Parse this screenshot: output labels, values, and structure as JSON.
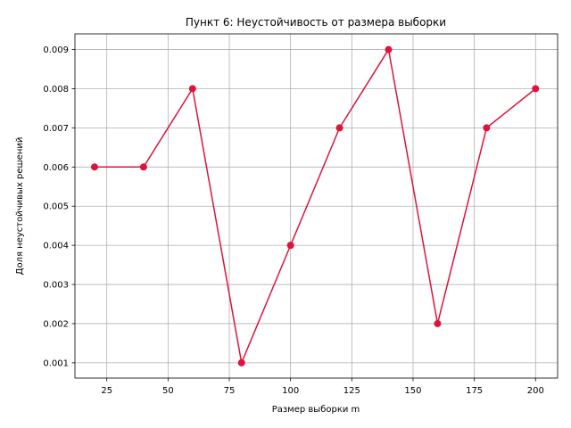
{
  "chart_data": {
    "type": "line",
    "title": "Пункт 6: Неустойчивость от размера выборки",
    "xlabel": "Размер выборки m",
    "ylabel": "Доля неустойчивых решений",
    "x": [
      20,
      40,
      60,
      80,
      100,
      120,
      140,
      160,
      180,
      200
    ],
    "series": [
      {
        "values": [
          0.006,
          0.006,
          0.008,
          0.001,
          0.004,
          0.007,
          0.009,
          0.002,
          0.007,
          0.008
        ]
      }
    ],
    "xlim": [
      12,
      209
    ],
    "ylim": [
      0.00061,
      0.0094
    ],
    "xticks": [
      25,
      50,
      75,
      100,
      125,
      150,
      175,
      200
    ],
    "xtick_labels": [
      "25",
      "50",
      "75",
      "100",
      "125",
      "150",
      "175",
      "200"
    ],
    "yticks": [
      0.001,
      0.002,
      0.003,
      0.004,
      0.005,
      0.006,
      0.007,
      0.008,
      0.009
    ],
    "ytick_labels": [
      "0.001",
      "0.002",
      "0.003",
      "0.004",
      "0.005",
      "0.006",
      "0.007",
      "0.008",
      "0.009"
    ],
    "grid": true,
    "line_color": "#dc143c",
    "marker": "circle"
  }
}
